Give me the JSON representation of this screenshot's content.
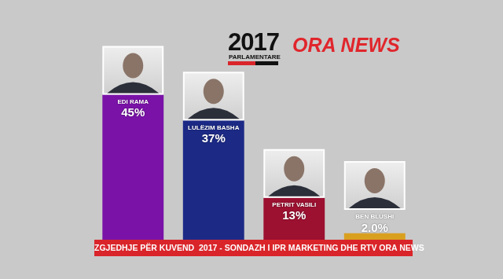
{
  "chart_data": {
    "type": "bar",
    "title": "ZGJEDHJE PËR KUVEND  2017 - SONDAZH I IPR MARKETING DHE RTV ORA NEWS",
    "annotations": [
      "2017",
      "PARLAMENTARE",
      "ORA NEWS"
    ],
    "categories": [
      "EDI RAMA",
      "LULËZIM BASHA",
      "PETRIT VASILI",
      "BEN BLUSHI"
    ],
    "values": [
      45,
      37,
      13,
      2.0
    ],
    "value_labels": [
      "45%",
      "37%",
      "13%",
      "2.0%"
    ],
    "colors": [
      "#7a12a8",
      "#1c2a86",
      "#9c1030",
      "#d9a020"
    ],
    "ylim": [
      0,
      50
    ],
    "grid": false,
    "data_labels": true,
    "tick_labels": false
  }
}
